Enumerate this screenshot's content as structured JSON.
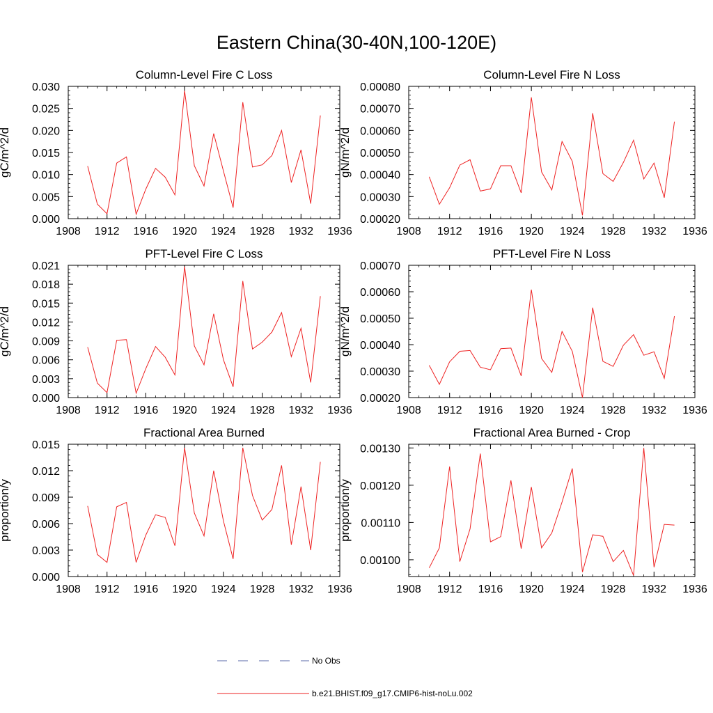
{
  "title": "Eastern China(30-40N,100-120E)",
  "legend": {
    "items": [
      {
        "label": "No Obs",
        "color": "#5a6aa8",
        "dash": true
      },
      {
        "label": "b.e21.BHIST.f09_g17.CMIP6-hist-noLu.002",
        "color": "#ee2222",
        "dash": false
      }
    ]
  },
  "chart_data": [
    {
      "type": "line",
      "title": "Column-Level Fire C Loss",
      "ylabel": "gC/m^2/d",
      "xlim": [
        1908,
        1936
      ],
      "ylim": [
        0,
        0.03
      ],
      "yticks": [
        "0.000",
        "0.005",
        "0.010",
        "0.015",
        "0.020",
        "0.025",
        "0.030"
      ],
      "xticks": [
        "1908",
        "1912",
        "1916",
        "1920",
        "1924",
        "1928",
        "1932",
        "1936"
      ],
      "x": [
        1910,
        1911,
        1912,
        1913,
        1914,
        1915,
        1916,
        1917,
        1918,
        1919,
        1920,
        1921,
        1922,
        1923,
        1924,
        1925,
        1926,
        1927,
        1928,
        1929,
        1930,
        1931,
        1932,
        1933,
        1934
      ],
      "series": [
        {
          "name": "b.e21.BHIST.f09_g17.CMIP6-hist-noLu.002",
          "color": "#ee2222",
          "values": [
            0.0119,
            0.0033,
            0.0011,
            0.0126,
            0.014,
            0.001,
            0.0067,
            0.0114,
            0.0094,
            0.0054,
            0.029,
            0.012,
            0.0074,
            0.0193,
            0.0108,
            0.0025,
            0.0264,
            0.0117,
            0.0122,
            0.0143,
            0.02,
            0.0082,
            0.0156,
            0.0034,
            0.0234
          ]
        }
      ]
    },
    {
      "type": "line",
      "title": "Column-Level Fire N Loss",
      "ylabel": "gN/m^2/d",
      "xlim": [
        1908,
        1936
      ],
      "ylim": [
        0.0002,
        0.0008
      ],
      "yticks": [
        "0.00020",
        "0.00030",
        "0.00040",
        "0.00050",
        "0.00060",
        "0.00070",
        "0.00080"
      ],
      "xticks": [
        "1908",
        "1912",
        "1916",
        "1920",
        "1924",
        "1928",
        "1932",
        "1936"
      ],
      "x": [
        1910,
        1911,
        1912,
        1913,
        1914,
        1915,
        1916,
        1917,
        1918,
        1919,
        1920,
        1921,
        1922,
        1923,
        1924,
        1925,
        1926,
        1927,
        1928,
        1929,
        1930,
        1931,
        1932,
        1933,
        1934
      ],
      "series": [
        {
          "name": "b.e21.BHIST.f09_g17.CMIP6-hist-noLu.002",
          "color": "#ee2222",
          "values": [
            0.00039,
            0.000265,
            0.00034,
            0.000443,
            0.000467,
            0.000325,
            0.000335,
            0.00044,
            0.00044,
            0.000317,
            0.00075,
            0.000412,
            0.00033,
            0.00055,
            0.00046,
            0.000215,
            0.000678,
            0.000404,
            0.000369,
            0.000455,
            0.000556,
            0.00038,
            0.000452,
            0.000295,
            0.00064
          ]
        }
      ]
    },
    {
      "type": "line",
      "title": "PFT-Level Fire C Loss",
      "ylabel": "gC/m^2/d",
      "xlim": [
        1908,
        1936
      ],
      "ylim": [
        0,
        0.021
      ],
      "yticks": [
        "0.000",
        "0.003",
        "0.006",
        "0.009",
        "0.012",
        "0.015",
        "0.018",
        "0.021"
      ],
      "xticks": [
        "1908",
        "1912",
        "1916",
        "1920",
        "1924",
        "1928",
        "1932",
        "1936"
      ],
      "x": [
        1910,
        1911,
        1912,
        1913,
        1914,
        1915,
        1916,
        1917,
        1918,
        1919,
        1920,
        1921,
        1922,
        1923,
        1924,
        1925,
        1926,
        1927,
        1928,
        1929,
        1930,
        1931,
        1932,
        1933,
        1934
      ],
      "series": [
        {
          "name": "b.e21.BHIST.f09_g17.CMIP6-hist-noLu.002",
          "color": "#ee2222",
          "values": [
            0.008,
            0.0023,
            0.0008,
            0.0091,
            0.0092,
            0.0007,
            0.0046,
            0.0081,
            0.0064,
            0.0036,
            0.0208,
            0.0082,
            0.0052,
            0.0133,
            0.006,
            0.0017,
            0.0185,
            0.0077,
            0.0088,
            0.0104,
            0.0135,
            0.0065,
            0.011,
            0.0024,
            0.0161
          ]
        }
      ]
    },
    {
      "type": "line",
      "title": "PFT-Level Fire N Loss",
      "ylabel": "gN/m^2/d",
      "xlim": [
        1908,
        1936
      ],
      "ylim": [
        0.0002,
        0.0007
      ],
      "yticks": [
        "0.00020",
        "0.00030",
        "0.00040",
        "0.00050",
        "0.00060",
        "0.00070"
      ],
      "xticks": [
        "1908",
        "1912",
        "1916",
        "1920",
        "1924",
        "1928",
        "1932",
        "1936"
      ],
      "x": [
        1910,
        1911,
        1912,
        1913,
        1914,
        1915,
        1916,
        1917,
        1918,
        1919,
        1920,
        1921,
        1922,
        1923,
        1924,
        1925,
        1926,
        1927,
        1928,
        1929,
        1930,
        1931,
        1932,
        1933,
        1934
      ],
      "series": [
        {
          "name": "b.e21.BHIST.f09_g17.CMIP6-hist-noLu.002",
          "color": "#ee2222",
          "values": [
            0.000322,
            0.00025,
            0.000335,
            0.000375,
            0.000378,
            0.000315,
            0.000305,
            0.000385,
            0.000387,
            0.000282,
            0.000608,
            0.000348,
            0.000295,
            0.00045,
            0.000375,
            0.0002,
            0.00054,
            0.000337,
            0.000318,
            0.000398,
            0.000438,
            0.00036,
            0.000373,
            0.000273,
            0.000508
          ]
        }
      ]
    },
    {
      "type": "line",
      "title": "Fractional Area Burned",
      "ylabel": "proportion/y",
      "xlim": [
        1908,
        1936
      ],
      "ylim": [
        0,
        0.015
      ],
      "yticks": [
        "0.000",
        "0.003",
        "0.006",
        "0.009",
        "0.012",
        "0.015"
      ],
      "xticks": [
        "1908",
        "1912",
        "1916",
        "1920",
        "1924",
        "1928",
        "1932",
        "1936"
      ],
      "x": [
        1910,
        1911,
        1912,
        1913,
        1914,
        1915,
        1916,
        1917,
        1918,
        1919,
        1920,
        1921,
        1922,
        1923,
        1924,
        1925,
        1926,
        1927,
        1928,
        1929,
        1930,
        1931,
        1932,
        1933,
        1934
      ],
      "series": [
        {
          "name": "b.e21.BHIST.f09_g17.CMIP6-hist-noLu.002",
          "color": "#ee2222",
          "values": [
            0.008,
            0.0025,
            0.0016,
            0.0079,
            0.0084,
            0.0016,
            0.0047,
            0.007,
            0.0067,
            0.0035,
            0.0146,
            0.0072,
            0.0046,
            0.012,
            0.0063,
            0.002,
            0.0146,
            0.0092,
            0.0064,
            0.0076,
            0.0126,
            0.0036,
            0.0102,
            0.003,
            0.013
          ]
        }
      ]
    },
    {
      "type": "line",
      "title": "Fractional Area Burned - Crop",
      "ylabel": "proportion/y",
      "xlim": [
        1908,
        1936
      ],
      "ylim": [
        0.000955,
        0.00131
      ],
      "yticks": [
        {
          "value": 0.001,
          "label": "0.00100"
        },
        {
          "value": 0.0011,
          "label": "0.00110"
        },
        {
          "value": 0.0012,
          "label": "0.00120"
        },
        {
          "value": 0.0013,
          "label": "0.00130"
        }
      ],
      "xticks": [
        "1908",
        "1912",
        "1916",
        "1920",
        "1924",
        "1928",
        "1932",
        "1936"
      ],
      "x": [
        1910,
        1911,
        1912,
        1913,
        1914,
        1915,
        1916,
        1917,
        1918,
        1919,
        1920,
        1921,
        1922,
        1923,
        1924,
        1925,
        1926,
        1927,
        1928,
        1929,
        1930,
        1931,
        1932,
        1933,
        1934
      ],
      "series": [
        {
          "name": "b.e21.BHIST.f09_g17.CMIP6-hist-noLu.002",
          "color": "#ee2222",
          "values": [
            0.000978,
            0.001032,
            0.00125,
            0.000995,
            0.001083,
            0.001285,
            0.001048,
            0.001062,
            0.001213,
            0.00103,
            0.001195,
            0.001032,
            0.001072,
            0.001155,
            0.001245,
            0.000967,
            0.001067,
            0.001063,
            0.000995,
            0.001025,
            0.000958,
            0.0013,
            0.00098,
            0.001095,
            0.001093
          ]
        }
      ]
    }
  ]
}
